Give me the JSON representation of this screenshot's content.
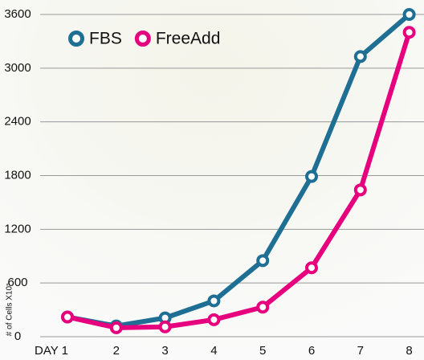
{
  "chart_data": {
    "type": "line",
    "y_label": "# of Cells X10⁵",
    "categories": [
      "DAY 1",
      "2",
      "3",
      "4",
      "5",
      "6",
      "7",
      "8"
    ],
    "series": [
      {
        "name": "FBS",
        "color": "#1f6f94",
        "values": [
          220,
          120,
          210,
          400,
          850,
          1790,
          3130,
          3600
        ]
      },
      {
        "name": "FreeAdd",
        "color": "#e6007e",
        "values": [
          220,
          100,
          110,
          190,
          330,
          770,
          1640,
          3400
        ]
      }
    ],
    "ylim": [
      0,
      3600
    ],
    "yticks": [
      0,
      600,
      1200,
      1800,
      2400,
      3000,
      3600
    ],
    "grid": true,
    "legend": "top-left"
  }
}
